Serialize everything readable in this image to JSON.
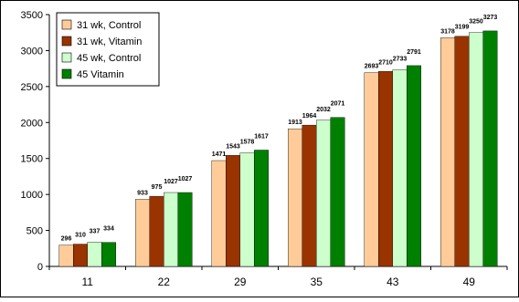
{
  "chart_data": {
    "type": "bar",
    "categories": [
      "11",
      "22",
      "29",
      "35",
      "43",
      "49"
    ],
    "series": [
      {
        "name": "31 wk, Control",
        "color": "#FFCC99",
        "values": [
          296,
          933,
          1471,
          1913,
          2693,
          3178
        ]
      },
      {
        "name": "31 wk, Vitamin",
        "color": "#993300",
        "values": [
          310,
          975,
          1543,
          1964,
          2710,
          3199
        ]
      },
      {
        "name": "45 wk, Control",
        "color": "#CCFFCC",
        "values": [
          337,
          1027,
          1578,
          2032,
          2733,
          3250
        ]
      },
      {
        "name": "45 Vitamin",
        "color": "#008000",
        "values": [
          334,
          1027,
          1617,
          2071,
          2791,
          3273
        ]
      }
    ],
    "ylim": [
      0,
      3500
    ],
    "yticks": [
      0,
      500,
      1000,
      1500,
      2000,
      2500,
      3000,
      3500
    ],
    "grid": false,
    "legend_position": "top-left",
    "title": "",
    "xlabel": "",
    "ylabel": ""
  }
}
